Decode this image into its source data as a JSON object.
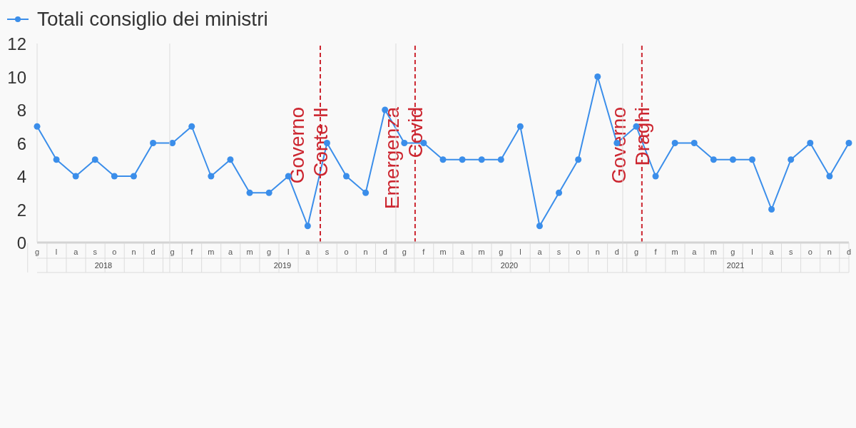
{
  "chart_data": {
    "type": "line",
    "categories": [
      "g",
      "l",
      "a",
      "s",
      "o",
      "n",
      "d",
      "g",
      "f",
      "m",
      "a",
      "m",
      "g",
      "l",
      "a",
      "s",
      "o",
      "n",
      "d",
      "g",
      "f",
      "m",
      "a",
      "m",
      "g",
      "l",
      "a",
      "s",
      "o",
      "n",
      "d",
      "g",
      "f",
      "m",
      "a",
      "m",
      "g",
      "l",
      "a",
      "s",
      "o",
      "n",
      "d"
    ],
    "series": [
      {
        "name": "Totali consiglio dei ministri",
        "color": "#3b8eea",
        "values": [
          7,
          5,
          4,
          5,
          4,
          4,
          6,
          6,
          7,
          4,
          5,
          3,
          3,
          4,
          1,
          6,
          4,
          3,
          8,
          6,
          6,
          5,
          5,
          5,
          5,
          7,
          1,
          3,
          5,
          10,
          6,
          7,
          4,
          6,
          6,
          5,
          5,
          5,
          2,
          5,
          6,
          4,
          6
        ]
      }
    ],
    "x2lim": [
      "2018-06-01",
      "2022-01-01"
    ],
    "x2ticks": [
      {
        "value": "2018-09-16",
        "label": "2018"
      },
      {
        "value": "2019-01-01",
        "label": null
      },
      {
        "value": "2019-07-02",
        "label": "2019"
      },
      {
        "value": "2020-01-01",
        "label": null
      },
      {
        "value": "2020-07-02",
        "label": "2020"
      },
      {
        "value": "2021-01-01",
        "label": null
      },
      {
        "value": "2021-07-02",
        "label": "2021"
      }
    ],
    "ylim": [
      0,
      12
    ],
    "yticks": [
      0,
      2,
      4,
      6,
      8,
      10,
      12
    ],
    "ref_lines": [
      {
        "axis": "x2",
        "value": "2019-09-01",
        "label": "Governo\nConte II",
        "color": "#cc2630",
        "line_style": "dashed"
      },
      {
        "axis": "x2",
        "value": "2020-02-01",
        "label": "Emergenza\nCovid",
        "color": "#cc2630",
        "line_style": "dashed"
      },
      {
        "axis": "x2",
        "value": "2021-02-01",
        "label": "Governo\nDraghi",
        "color": "#cc2630",
        "line_style": "dashed"
      }
    ],
    "legend": "top left",
    "marker": "circle"
  }
}
